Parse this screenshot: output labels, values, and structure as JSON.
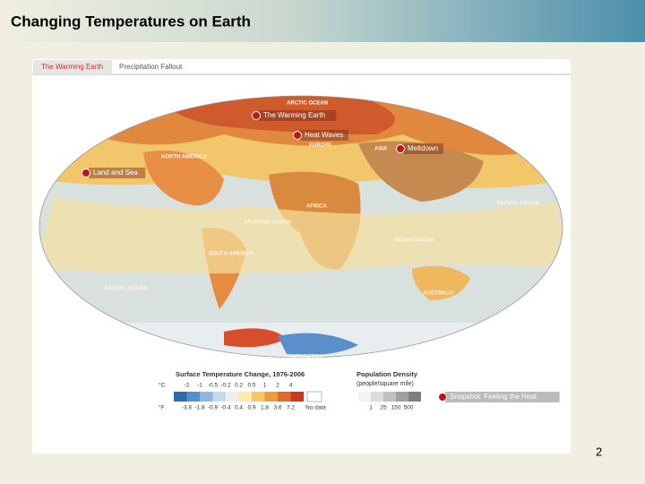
{
  "header": {
    "title": "Changing Temperatures on Earth"
  },
  "tabs": [
    "The Warming Earth",
    "Precipitation Fallout"
  ],
  "map_labels": [
    "ARCTIC OCEAN",
    "EUROPE",
    "ASIA",
    "NORTH AMERICA",
    "PACIFIC OCEAN",
    "ATLANTIC OCEAN",
    "AFRICA",
    "INDIAN OCEAN",
    "SOUTH AMERICA",
    "PACIFIC OCEAN",
    "AUSTRALIA",
    "ANTARCTICA"
  ],
  "markers": [
    "The Warming Earth",
    "Heat Waves",
    "Meltdown",
    "Land and Sea",
    "Snapshot: Feeling the Heat"
  ],
  "legend": {
    "temperature": {
      "title": "Surface Temperature Change, 1976-2006",
      "celsius_unit": "°C",
      "fahrenheit_unit": "°F",
      "celsius": [
        "-2",
        "-1",
        "-0.5",
        "-0.2",
        "0.2",
        "0.5",
        "1",
        "2",
        "4"
      ],
      "fahrenheit": [
        "-3.6",
        "-1.8",
        "-0.9",
        "-0.4",
        "0.4",
        "0.9",
        "1.8",
        "3.6",
        "7.2"
      ],
      "no_data": "No data"
    },
    "population": {
      "title": "Population Density",
      "subtitle": "(people/square mile)",
      "ticks": [
        "1",
        "25",
        "150",
        "500"
      ]
    }
  },
  "page_number": "2"
}
